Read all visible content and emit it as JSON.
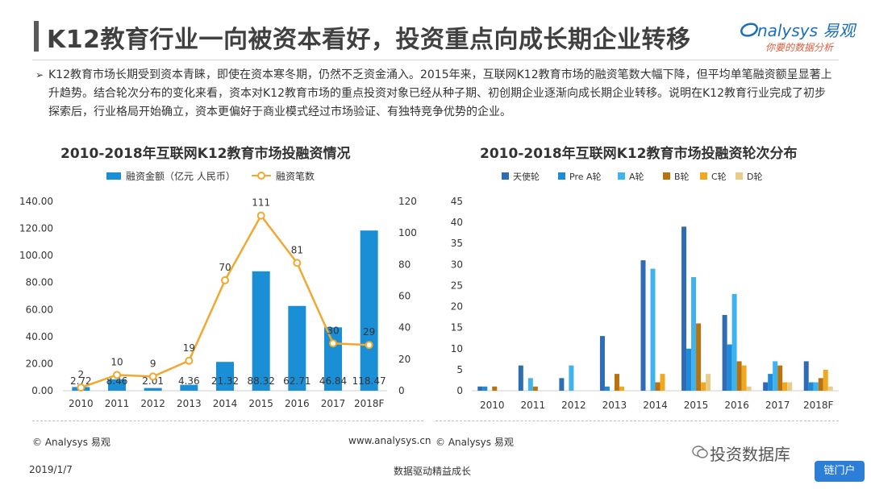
{
  "header": {
    "title": "K12教育行业一向被资本看好，投资重点向成长期企业转移",
    "logo_name": "nalysys 易观",
    "logo_sub": "你要的数据分析"
  },
  "intro": {
    "bullet": "➢",
    "text": "K12教育市场长期受到资本青睐，即使在资本寒冬期，仍然不乏资金涌入。2015年来，互联网K12教育市场的融资笔数大幅下降，但平均单笔融资额呈显著上升趋势。结合轮次分布的变化来看，资本对K12教育市场的重点投资对象已经从种子期、初创期企业逐渐向成长期企业转移。说明在K12教育行业完成了初步探索后，行业格局开始确立，资本更偏好于商业模式经过市场验证、有独特竞争优势的企业。"
  },
  "chart_data": [
    {
      "type": "bar",
      "title": "2010-2018年互联网K12教育市场投融资情况",
      "categories": [
        "2010",
        "2011",
        "2012",
        "2013",
        "2014",
        "2015",
        "2016",
        "2017",
        "2018F"
      ],
      "series": [
        {
          "name": "融资金额（亿元 人民币）",
          "kind": "bar",
          "axis": "left",
          "color": "#1a8fd6",
          "values": [
            2.72,
            8.46,
            2.01,
            4.36,
            21.32,
            88.32,
            62.71,
            46.84,
            118.47
          ]
        },
        {
          "name": "融资笔数",
          "kind": "line",
          "axis": "right",
          "color": "#f0a830",
          "values": [
            2,
            10,
            9,
            19,
            70,
            111,
            81,
            30,
            29
          ]
        }
      ],
      "left_ticks": [
        "140.00",
        "120.00",
        "100.00",
        "80.00",
        "60.00",
        "40.00",
        "20.00",
        "0.00"
      ],
      "right_ticks": [
        "120",
        "100",
        "80",
        "60",
        "40",
        "20",
        "0"
      ],
      "ylim_left": [
        0,
        140
      ],
      "ylim_right": [
        0,
        120
      ],
      "source": "© Analysys 易观",
      "url": "www.analysys.cn"
    },
    {
      "type": "bar",
      "title": "2010-2018年互联网K12教育市场投融资轮次分布",
      "categories": [
        "2010",
        "2011",
        "2012",
        "2013",
        "2014",
        "2015",
        "2016",
        "2017",
        "2018F"
      ],
      "series": [
        {
          "name": "天使轮",
          "color": "#2e6db5",
          "values": [
            1,
            6,
            3,
            13,
            31,
            39,
            18,
            2,
            7
          ]
        },
        {
          "name": "Pre A轮",
          "color": "#1e8ad8",
          "values": [
            1,
            0,
            0,
            1,
            0,
            10,
            11,
            4,
            2
          ]
        },
        {
          "name": "A轮",
          "color": "#3fb3ee",
          "values": [
            0,
            3,
            6,
            0,
            29,
            27,
            23,
            7,
            2
          ]
        },
        {
          "name": "B轮",
          "color": "#b8720e",
          "values": [
            1,
            1,
            0,
            4,
            2,
            16,
            7,
            6,
            3
          ]
        },
        {
          "name": "C轮",
          "color": "#f0a820",
          "values": [
            0,
            0,
            0,
            1,
            4,
            2,
            6,
            2,
            5
          ]
        },
        {
          "name": "D轮",
          "color": "#e8cc8a",
          "values": [
            0,
            0,
            0,
            0,
            0,
            4,
            1,
            2,
            1
          ]
        }
      ],
      "y_ticks": [
        "45",
        "40",
        "35",
        "30",
        "25",
        "20",
        "15",
        "10",
        "5",
        "0"
      ],
      "ylim": [
        0,
        45
      ],
      "source": "© Analysys 易观"
    }
  ],
  "footer": {
    "date": "2019/1/7",
    "slogan": "数据驱动精益成长",
    "wechat": "投资数据库",
    "badge": "链门户"
  }
}
